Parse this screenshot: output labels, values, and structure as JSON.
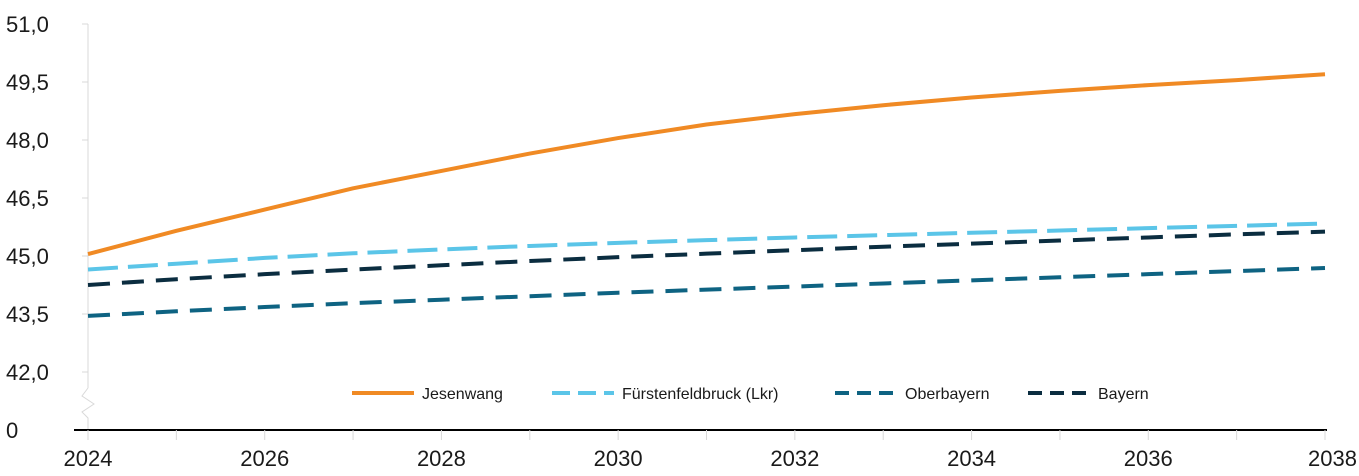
{
  "chart_data": {
    "type": "line",
    "title": "",
    "xlabel": "",
    "ylabel": "",
    "x": [
      2024,
      2025,
      2026,
      2027,
      2028,
      2029,
      2030,
      2031,
      2032,
      2033,
      2034,
      2035,
      2036,
      2037,
      2038
    ],
    "x_tick_labels": [
      "2024",
      "2026",
      "2028",
      "2030",
      "2032",
      "2034",
      "2036",
      "2038"
    ],
    "y_tick_labels": [
      "0",
      "42,0",
      "43,5",
      "45,0",
      "46,5",
      "48,0",
      "49,5",
      "51,0"
    ],
    "ylim": [
      42.0,
      51.0
    ],
    "y_axis_break": true,
    "grid": false,
    "legend_position": "bottom-center",
    "series": [
      {
        "name": "Jesenwang",
        "color": "#F08A24",
        "style": "solid",
        "values": [
          45.05,
          45.65,
          46.2,
          46.75,
          47.2,
          47.65,
          48.05,
          48.4,
          48.67,
          48.9,
          49.1,
          49.27,
          49.42,
          49.55,
          49.7
        ]
      },
      {
        "name": "Fürstenfeldbruck (Lkr)",
        "color": "#5BC5E8",
        "style": "long-dash",
        "values": [
          44.65,
          44.8,
          44.95,
          45.07,
          45.17,
          45.26,
          45.34,
          45.41,
          45.48,
          45.54,
          45.6,
          45.66,
          45.72,
          45.78,
          45.84
        ]
      },
      {
        "name": "Oberbayern",
        "color": "#0E6382",
        "style": "dash",
        "values": [
          43.45,
          43.57,
          43.68,
          43.78,
          43.87,
          43.96,
          44.05,
          44.13,
          44.21,
          44.29,
          44.37,
          44.45,
          44.53,
          44.61,
          44.69
        ]
      },
      {
        "name": "Bayern",
        "color": "#0B2D40",
        "style": "dash",
        "values": [
          44.25,
          44.4,
          44.53,
          44.65,
          44.76,
          44.87,
          44.97,
          45.06,
          45.15,
          45.24,
          45.32,
          45.4,
          45.48,
          45.56,
          45.63
        ]
      }
    ]
  }
}
